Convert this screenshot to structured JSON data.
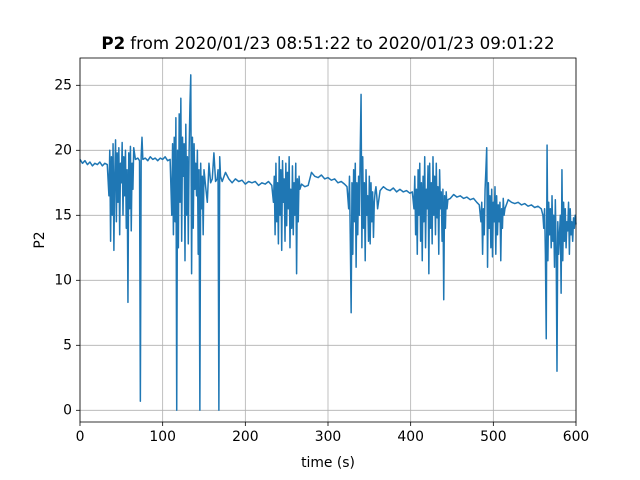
{
  "chart_data": {
    "type": "line",
    "title_name": "P2",
    "title": "from 2020/01/23 08:51:22 to 2020/01/23 09:01:22",
    "x_label": "time (s)",
    "y_label": "P2",
    "color": "#1f77b4",
    "grid": true,
    "xlim": [
      0,
      600
    ],
    "ylim": [
      -0.9,
      27.1
    ],
    "xticks": [
      0,
      100,
      200,
      300,
      400,
      500,
      600
    ],
    "yticks": [
      0,
      5,
      10,
      15,
      20,
      25
    ],
    "x": [
      0,
      3,
      6,
      9,
      12,
      15,
      18,
      21,
      24,
      27,
      30,
      33,
      35,
      36,
      37,
      38,
      39,
      40,
      41,
      42,
      43,
      44,
      45,
      46,
      47,
      48,
      49,
      50,
      51,
      52,
      53,
      54,
      55,
      56,
      57,
      58,
      59,
      60,
      61,
      62,
      63,
      64,
      65,
      67,
      70,
      72,
      73,
      74,
      75,
      76,
      79,
      82,
      85,
      88,
      91,
      94,
      97,
      100,
      103,
      106,
      109,
      111,
      112,
      113,
      114,
      115,
      116,
      117,
      118,
      119,
      120,
      121,
      122,
      123,
      124,
      125,
      126,
      127,
      128,
      129,
      130,
      131,
      132,
      133,
      134,
      135,
      136,
      137,
      138,
      139,
      140,
      141,
      142,
      143,
      144,
      145,
      146,
      147,
      148,
      149,
      150,
      152,
      154,
      156,
      158,
      160,
      162,
      164,
      166,
      167,
      168,
      169,
      170,
      172,
      176,
      180,
      184,
      188,
      192,
      196,
      200,
      204,
      208,
      212,
      216,
      220,
      224,
      228,
      232,
      234,
      235,
      236,
      237,
      238,
      239,
      240,
      241,
      242,
      243,
      244,
      245,
      246,
      247,
      248,
      249,
      250,
      251,
      252,
      253,
      254,
      255,
      256,
      257,
      258,
      259,
      260,
      261,
      262,
      263,
      264,
      265,
      266,
      268,
      272,
      276,
      280,
      284,
      288,
      292,
      296,
      300,
      304,
      308,
      312,
      316,
      320,
      323,
      325,
      326,
      327,
      328,
      329,
      330,
      331,
      332,
      333,
      334,
      335,
      336,
      337,
      338,
      339,
      340,
      341,
      342,
      343,
      344,
      345,
      346,
      347,
      348,
      349,
      350,
      351,
      352,
      353,
      354,
      355,
      356,
      357,
      358,
      359,
      360,
      363,
      367,
      371,
      375,
      379,
      383,
      387,
      391,
      395,
      399,
      402,
      404,
      405,
      406,
      407,
      408,
      409,
      410,
      411,
      412,
      413,
      414,
      415,
      416,
      417,
      418,
      419,
      420,
      421,
      422,
      423,
      424,
      425,
      426,
      427,
      428,
      429,
      430,
      431,
      432,
      433,
      434,
      435,
      436,
      437,
      438,
      439,
      440,
      441,
      442,
      443,
      444,
      445,
      448,
      452,
      456,
      460,
      464,
      468,
      472,
      476,
      480,
      483,
      485,
      486,
      487,
      488,
      489,
      490,
      491,
      492,
      493,
      494,
      495,
      496,
      497,
      498,
      499,
      500,
      501,
      502,
      503,
      504,
      505,
      506,
      507,
      508,
      509,
      510,
      511,
      512,
      513,
      514,
      518,
      522,
      526,
      530,
      534,
      538,
      542,
      546,
      550,
      554,
      558,
      560,
      561,
      562,
      563,
      564,
      565,
      566,
      567,
      568,
      569,
      570,
      571,
      572,
      573,
      574,
      575,
      576,
      577,
      578,
      579,
      580,
      581,
      582,
      583,
      584,
      585,
      586,
      587,
      588,
      589,
      590,
      591,
      592,
      593,
      594,
      595,
      596,
      597,
      598,
      599,
      600
    ],
    "values": [
      19.3,
      19.0,
      19.2,
      18.9,
      19.1,
      18.8,
      19.0,
      18.9,
      19.1,
      18.8,
      19.0,
      18.9,
      16.5,
      20.0,
      13.0,
      19.5,
      15.0,
      20.5,
      12.3,
      18.0,
      20.8,
      14.5,
      19.8,
      16.0,
      20.2,
      13.5,
      19.0,
      17.5,
      20.6,
      15.0,
      19.5,
      16.5,
      20.0,
      14.0,
      18.5,
      8.3,
      19.8,
      15.5,
      20.3,
      13.8,
      19.0,
      17.0,
      20.2,
      19.3,
      19.4,
      19.2,
      0.7,
      19.5,
      21.0,
      19.3,
      19.4,
      19.2,
      19.5,
      19.3,
      19.4,
      19.2,
      19.4,
      19.3,
      19.5,
      19.2,
      19.3,
      15.0,
      20.5,
      13.5,
      21.0,
      14.5,
      22.5,
      0.0,
      20.0,
      12.5,
      22.8,
      16.0,
      24.0,
      13.0,
      21.0,
      18.0,
      20.5,
      11.5,
      22.0,
      15.0,
      19.5,
      12.8,
      20.0,
      23.5,
      25.8,
      10.5,
      21.0,
      14.0,
      20.5,
      17.0,
      19.0,
      16.5,
      20.0,
      12.0,
      18.5,
      0.0,
      19.0,
      15.5,
      18.0,
      13.5,
      18.5,
      17.2,
      16.0,
      19.0,
      17.5,
      17.8,
      19.8,
      17.6,
      17.8,
      18.5,
      0.0,
      19.5,
      18.0,
      17.6,
      18.3,
      17.8,
      17.5,
      17.8,
      17.6,
      17.7,
      17.4,
      17.6,
      17.5,
      17.6,
      17.3,
      17.5,
      17.4,
      17.6,
      17.3,
      16.0,
      18.0,
      13.5,
      19.0,
      14.5,
      17.5,
      12.8,
      19.5,
      15.0,
      18.5,
      12.3,
      19.2,
      16.0,
      17.8,
      13.0,
      19.0,
      14.2,
      18.3,
      15.5,
      19.5,
      12.5,
      17.0,
      14.0,
      18.8,
      13.5,
      17.5,
      15.0,
      19.0,
      10.5,
      17.8,
      14.5,
      18.0,
      17.0,
      17.4,
      17.2,
      17.3,
      18.3,
      18.0,
      17.9,
      18.1,
      17.8,
      17.9,
      17.7,
      17.8,
      17.5,
      17.6,
      17.4,
      17.2,
      15.5,
      18.0,
      13.0,
      7.5,
      17.5,
      12.0,
      18.5,
      14.5,
      19.0,
      11.0,
      17.5,
      13.5,
      18.0,
      15.0,
      20.0,
      24.3,
      12.5,
      19.5,
      14.0,
      17.5,
      11.5,
      18.5,
      15.0,
      16.5,
      13.0,
      18.0,
      12.8,
      17.5,
      14.5,
      16.8,
      13.3,
      16.0,
      16.8,
      17.2,
      16.5,
      15.5,
      16.9,
      17.2,
      17.0,
      16.9,
      17.1,
      16.8,
      17.0,
      16.8,
      16.9,
      16.7,
      16.8,
      15.5,
      18.0,
      13.5,
      17.0,
      12.0,
      18.5,
      15.0,
      19.0,
      13.0,
      17.5,
      11.5,
      18.0,
      14.5,
      19.5,
      12.5,
      17.0,
      15.5,
      18.8,
      10.5,
      19.0,
      14.0,
      17.5,
      12.8,
      19.5,
      15.0,
      18.0,
      13.5,
      19.0,
      14.8,
      17.2,
      12.0,
      18.5,
      15.5,
      16.8,
      13.0,
      17.0,
      8.5,
      16.5,
      14.0,
      16.8,
      15.5,
      16.2,
      16.3,
      16.6,
      16.4,
      16.5,
      16.3,
      16.4,
      16.2,
      16.3,
      16.0,
      15.8,
      14.5,
      16.0,
      12.0,
      15.5,
      13.5,
      17.0,
      18.5,
      20.2,
      11.0,
      17.5,
      14.0,
      16.5,
      12.5,
      17.0,
      11.8,
      16.0,
      14.5,
      17.2,
      12.0,
      16.5,
      13.5,
      15.8,
      14.5,
      16.0,
      11.5,
      15.5,
      14.0,
      16.3,
      15.0,
      15.5,
      16.2,
      16.0,
      15.9,
      16.0,
      15.8,
      15.9,
      15.7,
      15.8,
      15.6,
      15.7,
      15.5,
      15.0,
      14.0,
      15.5,
      12.0,
      5.5,
      20.4,
      11.5,
      16.0,
      13.5,
      15.5,
      12.5,
      16.5,
      13.0,
      15.0,
      11.0,
      16.2,
      12.5,
      3.0,
      14.5,
      12.0,
      13.5,
      15.0,
      9.0,
      18.5,
      11.5,
      16.0,
      13.0,
      15.5,
      12.5,
      14.5,
      13.8,
      16.0,
      12.0,
      15.5,
      13.5,
      14.5,
      13.0,
      14.8,
      14.0,
      15.0,
      14.3
    ]
  }
}
